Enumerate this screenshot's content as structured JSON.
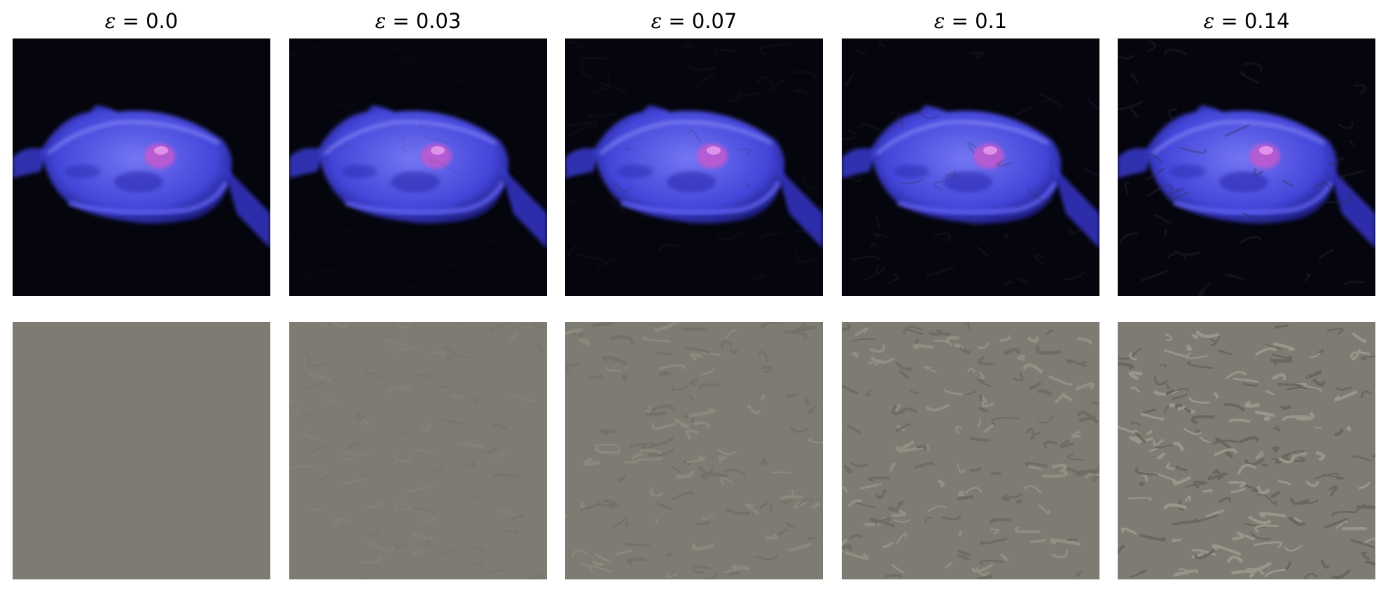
{
  "figure": {
    "columns": [
      {
        "epsilon_symbol": "ε",
        "value_text": " = 0.0",
        "noise_level": 0.0
      },
      {
        "epsilon_symbol": "ε",
        "value_text": " = 0.03",
        "noise_level": 0.03
      },
      {
        "epsilon_symbol": "ε",
        "value_text": " = 0.07",
        "noise_level": 0.07
      },
      {
        "epsilon_symbol": "ε",
        "value_text": " = 0.1",
        "noise_level": 0.1
      },
      {
        "epsilon_symbol": "ε",
        "value_text": " = 0.14",
        "noise_level": 0.14
      }
    ],
    "rows": [
      "adversarial-image",
      "perturbation"
    ],
    "colors": {
      "image_background": "#05050d",
      "jellyfish_blue": "#4a4cf0",
      "jellyfish_glow": "#7a7cff",
      "jellyfish_center": "#c05ad0",
      "perturbation_gray": "#7e7b72"
    }
  }
}
